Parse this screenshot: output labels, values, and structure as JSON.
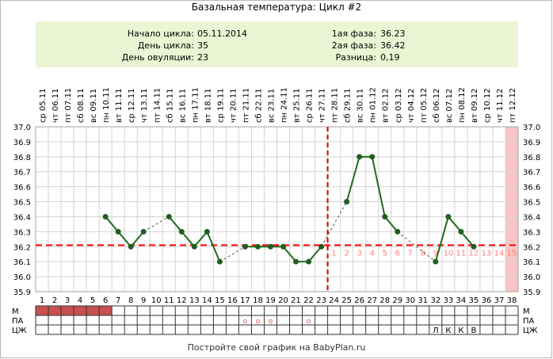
{
  "title": "Базальная температура: Цикл #2",
  "info": {
    "cycle_start_label": "Начало цикла:",
    "cycle_start": "05.11.2014",
    "cycle_day_label": "День цикла:",
    "cycle_day": "35",
    "ovulation_day_label": "День овуляции:",
    "ovulation_day": "23",
    "phase1_label": "1ая фаза:",
    "phase1": "36.23",
    "phase2_label": "2ая фаза:",
    "phase2": "36.42",
    "difference_label": "Разница:",
    "difference": "0,19"
  },
  "footer": "Постройте свой график на BabyPlan.ru",
  "colors": {
    "line": "#1f6b1f",
    "point": "#1f5e1f",
    "coverline": "#ff0000",
    "ovulation": "#cc0000",
    "highlight": "#f9c4c4",
    "m_bar": "#c85050",
    "info_bg": "#eaf5d3",
    "luteal_days": "#ff8080"
  },
  "chart_data": {
    "type": "line",
    "title": "Базальная температура: Цикл #2",
    "y_ticks": [
      "37.0",
      "36.9",
      "36.8",
      "36.7",
      "36.6",
      "36.5",
      "36.4",
      "36.3",
      "36.2",
      "36.1",
      "36.0",
      "35.9"
    ],
    "ylim": [
      35.9,
      37.0
    ],
    "cycle_days": [
      1,
      2,
      3,
      4,
      5,
      6,
      7,
      8,
      9,
      10,
      11,
      12,
      13,
      14,
      15,
      16,
      17,
      18,
      19,
      20,
      21,
      22,
      23,
      24,
      25,
      26,
      27,
      28,
      29,
      30,
      31,
      32,
      33,
      34,
      35,
      36,
      37,
      38
    ],
    "dates": [
      "05.11",
      "06.11",
      "07.11",
      "08.11",
      "09.11",
      "10.11",
      "11.11",
      "12.11",
      "13.11",
      "14.11",
      "15.11",
      "16.11",
      "17.11",
      "18.11",
      "19.11",
      "20.11",
      "21.11",
      "22.11",
      "23.11",
      "24.11",
      "25.11",
      "26.11",
      "27.11",
      "28.11",
      "29.11",
      "30.11",
      "01.12",
      "02.12",
      "03.12",
      "04.12",
      "05.12",
      "06.12",
      "07.12",
      "08.12",
      "09.12",
      "10.12",
      "11.12",
      "12.12"
    ],
    "weekdays": [
      "ср",
      "чт",
      "пт",
      "сб",
      "вс",
      "пн",
      "вт",
      "ср",
      "чт",
      "пт",
      "сб",
      "вс",
      "пн",
      "вт",
      "ср",
      "чт",
      "пт",
      "сб",
      "вс",
      "пн",
      "вт",
      "ср",
      "чт",
      "пт",
      "сб",
      "вс",
      "пн",
      "вт",
      "ср",
      "чт",
      "пт",
      "сб",
      "вс",
      "пн",
      "вт",
      "ср",
      "чт",
      "пт"
    ],
    "temperatures": [
      null,
      null,
      null,
      null,
      null,
      36.4,
      36.3,
      36.2,
      36.3,
      null,
      36.4,
      36.3,
      36.2,
      36.3,
      36.1,
      null,
      36.2,
      36.2,
      36.2,
      36.2,
      36.1,
      36.1,
      36.2,
      null,
      36.5,
      36.8,
      36.8,
      36.4,
      36.3,
      null,
      null,
      36.1,
      36.4,
      36.3,
      36.2,
      null,
      null,
      null
    ],
    "coverline": 36.21,
    "ovulation_day": 23,
    "highlight_day": 38,
    "luteal_day_numbers": [
      1,
      2,
      3,
      4,
      5,
      6,
      7,
      8,
      9,
      10,
      11,
      12,
      13,
      14,
      15
    ],
    "luteal_start_day": 24,
    "rows": [
      {
        "label": "М",
        "marks": [
          1,
          2,
          3,
          4,
          5,
          6
        ]
      },
      {
        "label": "ПА",
        "symbols": [
          {
            "day": 17,
            "text": "о"
          },
          {
            "day": 18,
            "text": "о"
          },
          {
            "day": 19,
            "text": "о"
          },
          {
            "day": 22,
            "text": "о"
          }
        ]
      },
      {
        "label": "ЦЖ",
        "symbols": [
          {
            "day": 32,
            "text": "Л"
          },
          {
            "day": 33,
            "text": "К"
          },
          {
            "day": 34,
            "text": "К"
          },
          {
            "day": 35,
            "text": "В"
          }
        ]
      }
    ]
  }
}
